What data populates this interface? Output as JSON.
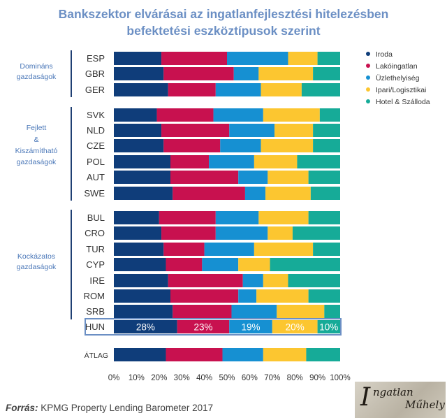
{
  "chart_data": {
    "type": "stacked-bar-horizontal",
    "title_lines": [
      "Bankszektor elvárásai az ingatlanfejlesztési hitelezésben",
      "befektetési eszköztípusok szerint"
    ],
    "series": [
      {
        "name": "Iroda",
        "color": "#0f3d7a"
      },
      {
        "name": "Lakóingatlan",
        "color": "#c8114f"
      },
      {
        "name": "Üzlethelyiség",
        "color": "#1690d2"
      },
      {
        "name": "Ipari/Logisztikai",
        "color": "#fcc630"
      },
      {
        "name": "Hotel & Szálloda",
        "color": "#16ab98"
      }
    ],
    "groups": [
      {
        "lines": [
          "Domináns",
          "gazdaságok"
        ],
        "countries": [
          "ESP",
          "GBR",
          "GER"
        ]
      },
      {
        "lines": [
          "Fejlett",
          "&",
          "Kiszámítható",
          "gazdaságok"
        ],
        "countries": [
          "SVK",
          "NLD",
          "CZE",
          "POL",
          "AUT",
          "SWE"
        ]
      },
      {
        "lines": [
          "Kockázatos",
          "gazdaságok"
        ],
        "countries": [
          "BUL",
          "CRO",
          "TUR",
          "CYP",
          "IRE",
          "ROM",
          "SRB"
        ]
      }
    ],
    "categories": [
      "ESP",
      "GBR",
      "GER",
      "SVK",
      "NLD",
      "CZE",
      "POL",
      "AUT",
      "SWE",
      "BUL",
      "CRO",
      "TUR",
      "CYP",
      "IRE",
      "ROM",
      "SRB",
      "HUN",
      "ÁTLAG"
    ],
    "values": {
      "ESP": [
        21,
        29,
        27,
        13,
        10
      ],
      "GBR": [
        22,
        31,
        11,
        24,
        12
      ],
      "GER": [
        24,
        21,
        20,
        18,
        17
      ],
      "SVK": [
        19,
        25,
        22,
        25,
        9
      ],
      "NLD": [
        21,
        30,
        20,
        17,
        12
      ],
      "CZE": [
        22,
        25,
        18,
        23,
        12
      ],
      "POL": [
        25,
        17,
        20,
        19,
        19
      ],
      "AUT": [
        25,
        30,
        13,
        18,
        14
      ],
      "SWE": [
        26,
        32,
        9,
        20,
        13
      ],
      "BUL": [
        20,
        25,
        19,
        22,
        14
      ],
      "CRO": [
        21,
        24,
        23,
        11,
        21
      ],
      "TUR": [
        22,
        18,
        22,
        26,
        12
      ],
      "CYP": [
        23,
        16,
        16,
        14,
        31
      ],
      "IRE": [
        24,
        33,
        9,
        11,
        23
      ],
      "ROM": [
        25,
        30,
        8,
        23,
        14
      ],
      "SRB": [
        26,
        26,
        20,
        21,
        7
      ],
      "HUN": [
        28,
        23,
        19,
        20,
        10
      ],
      "ÁTLAG": [
        23,
        25,
        18,
        19,
        15
      ]
    },
    "highlight": {
      "category": "HUN",
      "labels": [
        "28%",
        "23%",
        "19%",
        "20%",
        "10%"
      ]
    },
    "x_ticks": [
      "0%",
      "10%",
      "20%",
      "30%",
      "40%",
      "50%",
      "60%",
      "70%",
      "80%",
      "90%",
      "100%"
    ],
    "xlim": [
      0,
      100
    ],
    "legend_position": "right"
  },
  "source": {
    "label": "Forrás:",
    "text": "KPMG Property Lending Barometer 2017"
  },
  "logo": {
    "line1": "ngatlan",
    "line2": "Műhely",
    "mark": "I"
  }
}
